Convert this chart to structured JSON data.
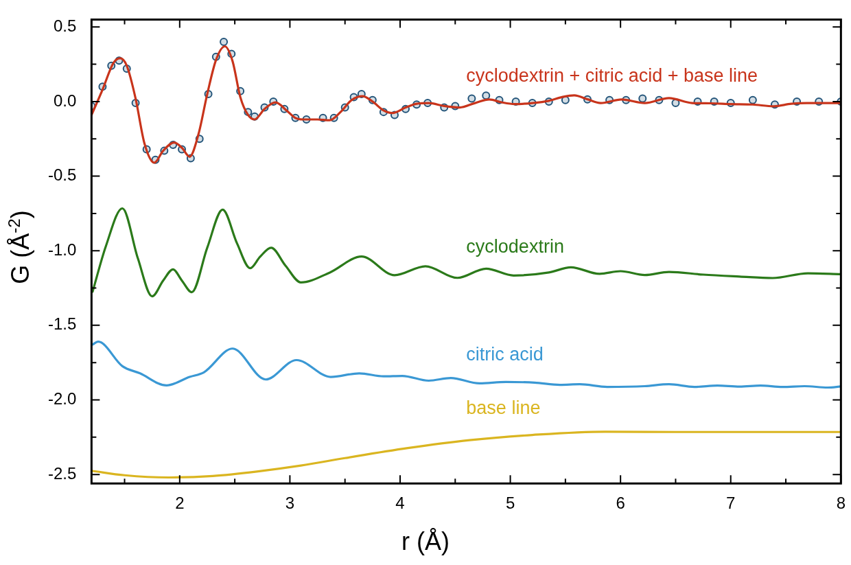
{
  "chart_data": {
    "type": "line",
    "xlabel": "r (Å)",
    "ylabel": "G (Å$^{-2}$)",
    "xlim": [
      1.2,
      8
    ],
    "ylim": [
      -2.56,
      0.55
    ],
    "xticks": [
      {
        "value": 1.5,
        "label": null
      },
      2,
      {
        "value": 2.5,
        "label": null
      },
      3,
      {
        "value": 3.5,
        "label": null
      },
      4,
      {
        "value": 4.5,
        "label": null
      },
      5,
      {
        "value": 5.5,
        "label": null
      },
      6,
      {
        "value": 6.5,
        "label": null
      },
      7,
      {
        "value": 7.5,
        "label": null
      },
      8
    ],
    "yticks": [
      {
        "value": -2.5,
        "label": "-2.5"
      },
      {
        "value": -2.25,
        "label": null
      },
      {
        "value": -2,
        "label": "-2.0"
      },
      {
        "value": -1.75,
        "label": null
      },
      {
        "value": -1.5,
        "label": "-1.5"
      },
      {
        "value": -1.25,
        "label": null
      },
      {
        "value": -1,
        "label": "-1.0"
      },
      {
        "value": -0.75,
        "label": null
      },
      {
        "value": -0.5,
        "label": "-0.5"
      },
      {
        "value": -0.25,
        "label": null
      },
      {
        "value": 0,
        "label": "0.0"
      },
      {
        "value": 0.25,
        "label": null
      },
      0.5
    ],
    "grid": false,
    "legend": false,
    "line_style": "solid",
    "series": [
      {
        "type": "scatter",
        "marker": "circle",
        "color": "#24557a",
        "x": [
          1.2,
          1.3,
          1.38,
          1.45,
          1.52,
          1.6,
          1.7,
          1.78,
          1.86,
          1.94,
          2.02,
          2.1,
          2.18,
          2.26,
          2.33,
          2.4,
          2.47,
          2.55,
          2.62,
          2.68,
          2.77,
          2.85,
          2.95,
          3.05,
          3.15,
          3.3,
          3.4,
          3.5,
          3.58,
          3.65,
          3.75,
          3.85,
          3.95,
          4.05,
          4.15,
          4.25,
          4.4,
          4.5,
          4.65,
          4.78,
          4.9,
          5.05,
          5.2,
          5.35,
          5.5,
          5.7,
          5.9,
          6.05,
          6.2,
          6.35,
          6.5,
          6.7,
          6.85,
          7.0,
          7.2,
          7.4,
          7.6,
          7.8,
          8.0
        ],
        "values": [
          -0.03,
          0.1,
          0.24,
          0.275,
          0.22,
          -0.01,
          -0.32,
          -0.39,
          -0.33,
          -0.29,
          -0.32,
          -0.38,
          -0.25,
          0.05,
          0.3,
          0.4,
          0.32,
          0.07,
          -0.07,
          -0.1,
          -0.04,
          0.0,
          -0.05,
          -0.11,
          -0.12,
          -0.11,
          -0.11,
          -0.04,
          0.03,
          0.05,
          0.01,
          -0.07,
          -0.09,
          -0.05,
          -0.02,
          -0.01,
          -0.04,
          -0.03,
          0.02,
          0.04,
          0.01,
          0.0,
          -0.01,
          0.0,
          0.01,
          0.015,
          0.01,
          0.01,
          0.02,
          0.01,
          -0.01,
          0.0,
          0.0,
          -0.01,
          0.01,
          -0.02,
          0.0,
          0.0,
          0.0
        ]
      },
      {
        "name": "cyclodextrin + citric acid + base line",
        "type": "line",
        "marker": "none",
        "color": "#c8341b",
        "x": [
          1.2,
          1.3,
          1.4,
          1.46,
          1.52,
          1.6,
          1.68,
          1.77,
          1.85,
          1.95,
          2.02,
          2.09,
          2.17,
          2.25,
          2.33,
          2.41,
          2.48,
          2.55,
          2.62,
          2.68,
          2.77,
          2.87,
          2.97,
          3.05,
          3.12,
          3.25,
          3.36,
          3.46,
          3.56,
          3.66,
          3.75,
          3.85,
          3.93,
          4.05,
          4.15,
          4.26,
          4.4,
          4.54,
          4.68,
          4.81,
          4.92,
          5.04,
          5.2,
          5.35,
          5.47,
          5.58,
          5.7,
          5.82,
          6.01,
          6.22,
          6.44,
          6.65,
          6.82,
          7.0,
          7.2,
          7.39,
          7.55,
          7.69,
          7.85,
          8.0
        ],
        "values": [
          -0.09,
          0.08,
          0.26,
          0.29,
          0.24,
          0.02,
          -0.28,
          -0.41,
          -0.33,
          -0.275,
          -0.31,
          -0.37,
          -0.22,
          0.05,
          0.28,
          0.37,
          0.27,
          0.03,
          -0.09,
          -0.12,
          -0.05,
          -0.006,
          -0.06,
          -0.11,
          -0.12,
          -0.12,
          -0.125,
          -0.07,
          0.01,
          0.036,
          0.0,
          -0.06,
          -0.077,
          -0.04,
          -0.015,
          -0.01,
          -0.03,
          -0.04,
          -0.01,
          0.014,
          -0.005,
          -0.017,
          -0.01,
          0.005,
          0.03,
          0.042,
          0.015,
          -0.01,
          0.014,
          -0.01,
          0.023,
          -0.01,
          -0.012,
          -0.017,
          -0.02,
          -0.032,
          -0.015,
          -0.01,
          -0.01,
          -0.01
        ]
      },
      {
        "name": "cyclodextrin",
        "type": "line",
        "marker": "none",
        "color": "#2b7a1a",
        "x": [
          1.21,
          1.33,
          1.48,
          1.62,
          1.75,
          1.85,
          1.94,
          2.02,
          2.11,
          2.25,
          2.39,
          2.52,
          2.64,
          2.73,
          2.83,
          2.96,
          3.1,
          3.36,
          3.65,
          3.95,
          4.23,
          4.52,
          4.78,
          5.03,
          5.35,
          5.55,
          5.81,
          6.0,
          6.22,
          6.44,
          6.75,
          7.08,
          7.38,
          7.7,
          8.0
        ],
        "values": [
          -1.274,
          -0.97,
          -0.716,
          -1.05,
          -1.306,
          -1.2,
          -1.125,
          -1.2,
          -1.278,
          -0.98,
          -0.725,
          -0.95,
          -1.117,
          -1.04,
          -0.98,
          -1.1,
          -1.212,
          -1.147,
          -1.039,
          -1.164,
          -1.104,
          -1.182,
          -1.12,
          -1.166,
          -1.146,
          -1.111,
          -1.155,
          -1.137,
          -1.163,
          -1.142,
          -1.16,
          -1.173,
          -1.183,
          -1.151,
          -1.157
        ]
      },
      {
        "name": "citric acid",
        "type": "line",
        "marker": "none",
        "color": "#3a98d4",
        "x": [
          1.21,
          1.26,
          1.48,
          1.64,
          1.88,
          2.09,
          2.22,
          2.48,
          2.78,
          3.06,
          3.37,
          3.63,
          3.85,
          4.02,
          4.26,
          4.46,
          4.72,
          4.96,
          5.22,
          5.45,
          5.63,
          5.88,
          6.22,
          6.44,
          6.67,
          6.88,
          7.08,
          7.27,
          7.47,
          7.67,
          7.88,
          8.0
        ],
        "values": [
          -1.629,
          -1.609,
          -1.774,
          -1.822,
          -1.903,
          -1.846,
          -1.815,
          -1.656,
          -1.863,
          -1.733,
          -1.846,
          -1.822,
          -1.842,
          -1.839,
          -1.871,
          -1.853,
          -1.889,
          -1.88,
          -1.884,
          -1.899,
          -1.895,
          -1.913,
          -1.908,
          -1.895,
          -1.913,
          -1.904,
          -1.911,
          -1.904,
          -1.913,
          -1.908,
          -1.917,
          -1.91
        ]
      },
      {
        "name": "base line",
        "type": "line",
        "marker": "none",
        "color": "#dab520",
        "x": [
          1.2,
          1.5,
          1.9,
          2.3,
          2.7,
          3.1,
          3.5,
          4.07,
          4.63,
          5.2,
          5.86,
          6.5,
          7.2,
          8.0
        ],
        "values": [
          -2.475,
          -2.505,
          -2.52,
          -2.51,
          -2.48,
          -2.44,
          -2.39,
          -2.323,
          -2.27,
          -2.235,
          -2.213,
          -2.215,
          -2.215,
          -2.215
        ]
      }
    ]
  }
}
